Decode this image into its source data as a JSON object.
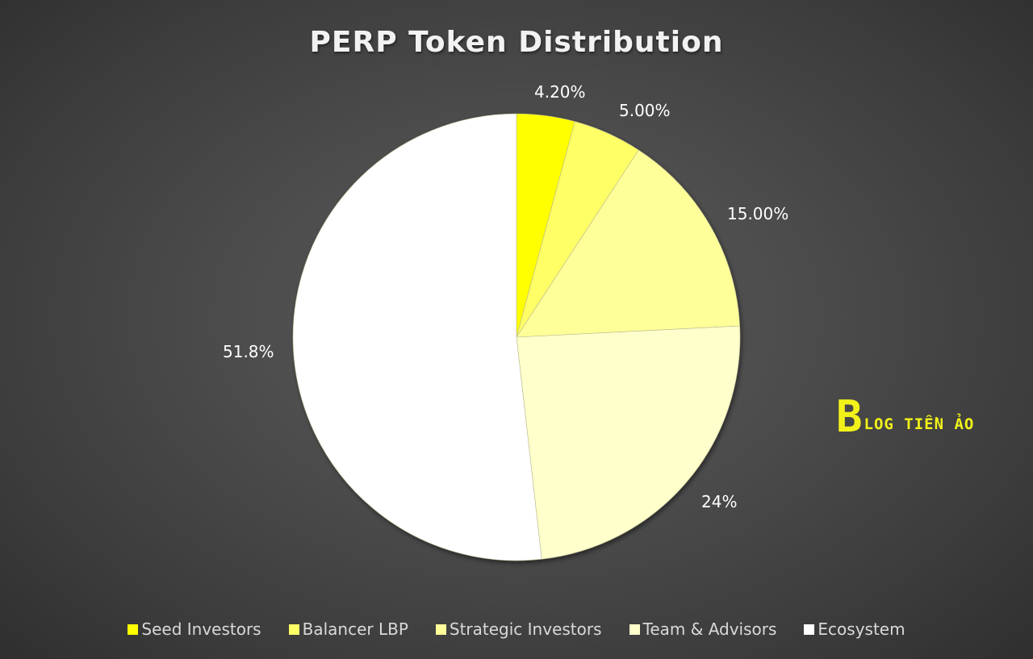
{
  "title": "PERP Token Distribution",
  "watermark": {
    "symbol": "B",
    "text": "LOG TIỀN ẢO"
  },
  "chart_data": {
    "type": "pie",
    "title": "PERP Token Distribution",
    "categories": [
      "Seed Investors",
      "Balancer LBP",
      "Strategic Investors",
      "Team & Advisors",
      "Ecosystem"
    ],
    "values": [
      4.2,
      5.0,
      15.0,
      24.0,
      51.8
    ],
    "data_labels": [
      "4.20%",
      "5.00%",
      "15.00%",
      "24%",
      "51.8%"
    ],
    "colors": [
      "#ffff00",
      "#ffff66",
      "#ffff99",
      "#ffffcc",
      "#ffffff"
    ],
    "legend_position": "bottom",
    "start_angle_deg": 0,
    "direction": "clockwise"
  },
  "legend": [
    {
      "label": "Seed Investors",
      "color": "#ffff00"
    },
    {
      "label": "Balancer LBP",
      "color": "#ffff66"
    },
    {
      "label": "Strategic Investors",
      "color": "#ffff99"
    },
    {
      "label": "Team & Advisors",
      "color": "#ffffcc"
    },
    {
      "label": "Ecosystem",
      "color": "#ffffff"
    }
  ],
  "labels": {
    "seed": "4.20%",
    "balancer": "5.00%",
    "strategic": "15.00%",
    "team": "24%",
    "ecosystem": "51.8%"
  }
}
